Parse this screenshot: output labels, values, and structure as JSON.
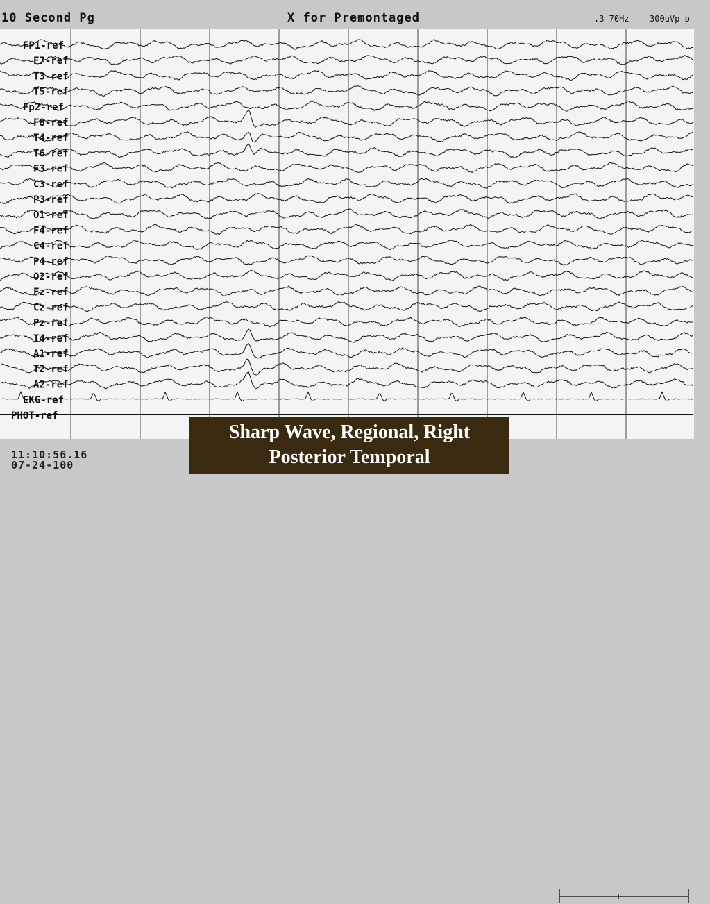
{
  "header": {
    "page_setting": "10 Second Pg",
    "montage_hint": "X for Premontaged",
    "filter": ".3-70Hz",
    "gain": "300uVp-p"
  },
  "channels": [
    "FP1-ref",
    "F7-ref",
    "T3-ref",
    "T5-ref",
    "Fp2-ref",
    "F8-ref",
    "T4-ref",
    "T6-ref",
    "F3-ref",
    "C3-ref",
    "P3-ref",
    "O1-ref",
    "F4-ref",
    "C4-ref",
    "P4-ref",
    "O2-ref",
    "Fz-ref",
    "Cz-ref",
    "Pz-ref",
    "T4-ref",
    "A1-ref",
    "T2-ref",
    "A2-ref",
    "EKG-ref",
    "PHOT-ref"
  ],
  "footer": {
    "time": "11:10:56.16",
    "date": "07-24-100"
  },
  "caption": {
    "line1": "Sharp Wave, Regional, Right",
    "line2": "Posterior Temporal"
  },
  "colors": {
    "trace": "#111111",
    "grid": "#444444",
    "caption_bg": "#3a2a10"
  }
}
